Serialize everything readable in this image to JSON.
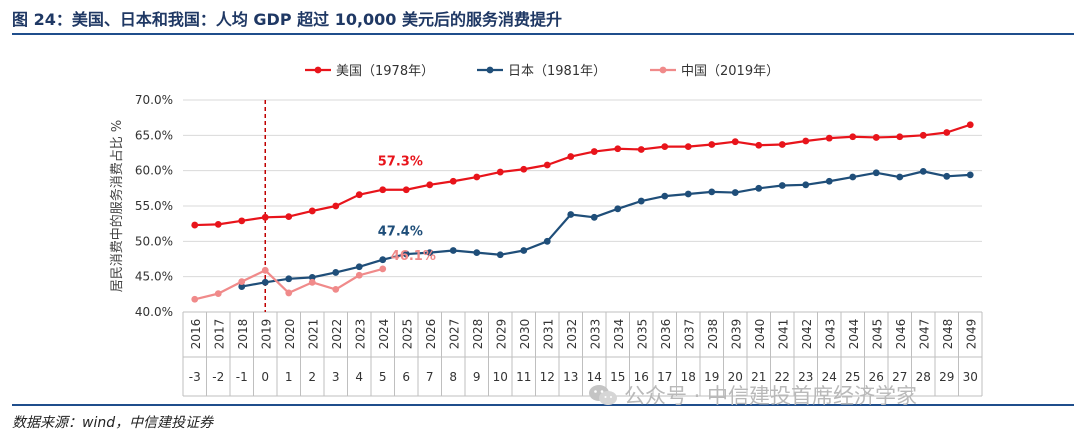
{
  "header": {
    "title": "图 24：美国、日本和我国：人均 GDP 超过 10,000 美元后的服务消费提升"
  },
  "footer": {
    "source": "数据来源：wind，中信建投证券"
  },
  "watermark": {
    "text": "公众号 · 中信建投首席经济学家",
    "icon": "wechat-icon"
  },
  "chart_data": {
    "type": "line",
    "ylabel": "居民消费中的服务消费占比 %",
    "ylim": [
      40,
      70
    ],
    "yticks": [
      "40.0%",
      "45.0%",
      "50.0%",
      "55.0%",
      "60.0%",
      "65.0%",
      "70.0%"
    ],
    "x_years": [
      "2016",
      "2017",
      "2018",
      "2019",
      "2020",
      "2021",
      "2022",
      "2023",
      "2024",
      "2025",
      "2026",
      "2027",
      "2028",
      "2029",
      "2030",
      "2031",
      "2032",
      "2033",
      "2034",
      "2035",
      "2036",
      "2037",
      "2038",
      "2039",
      "2040",
      "2041",
      "2042",
      "2043",
      "2044",
      "2045",
      "2046",
      "2047",
      "2048",
      "2049"
    ],
    "x_offsets": [
      "-3",
      "-2",
      "-1",
      "0",
      "1",
      "2",
      "3",
      "4",
      "5",
      "6",
      "7",
      "8",
      "9",
      "10",
      "11",
      "12",
      "13",
      "14",
      "15",
      "16",
      "17",
      "18",
      "19",
      "20",
      "21",
      "22",
      "23",
      "24",
      "25",
      "26",
      "27",
      "28",
      "29",
      "30"
    ],
    "reference_line_at": "2019",
    "grid": true,
    "legend_position": "top",
    "series": [
      {
        "name": "美国（1978年）",
        "color": "#e8141b",
        "start_index": 0,
        "values": [
          52.3,
          52.4,
          52.9,
          53.4,
          53.5,
          54.3,
          55.0,
          56.6,
          57.3,
          57.3,
          58.0,
          58.5,
          59.1,
          59.8,
          60.2,
          60.8,
          62.0,
          62.7,
          63.1,
          63.0,
          63.4,
          63.4,
          63.7,
          64.1,
          63.6,
          63.7,
          64.2,
          64.6,
          64.8,
          64.7,
          64.8,
          65.0,
          65.4,
          66.5
        ],
        "annotations": [
          {
            "index": 8,
            "label": "57.3%"
          }
        ]
      },
      {
        "name": "日本（1981年）",
        "color": "#1f4e79",
        "start_index": 2,
        "values": [
          43.6,
          44.2,
          44.7,
          44.9,
          45.6,
          46.4,
          47.4,
          48.2,
          48.4,
          48.7,
          48.4,
          48.1,
          48.7,
          50.0,
          53.8,
          53.4,
          54.6,
          55.7,
          56.4,
          56.7,
          57.0,
          56.9,
          57.5,
          57.9,
          58.0,
          58.5,
          59.1,
          59.7,
          59.1,
          59.9,
          59.2,
          59.4
        ],
        "annotations": [
          {
            "index": 6,
            "label": "47.4%"
          }
        ]
      },
      {
        "name": "中国（2019年）",
        "color": "#f08a8a",
        "start_index": 0,
        "values": [
          41.8,
          42.6,
          44.3,
          45.9,
          42.7,
          44.2,
          43.2,
          45.2,
          46.1
        ],
        "annotations": [
          {
            "index": 8,
            "label": "46.1%"
          }
        ]
      }
    ]
  }
}
